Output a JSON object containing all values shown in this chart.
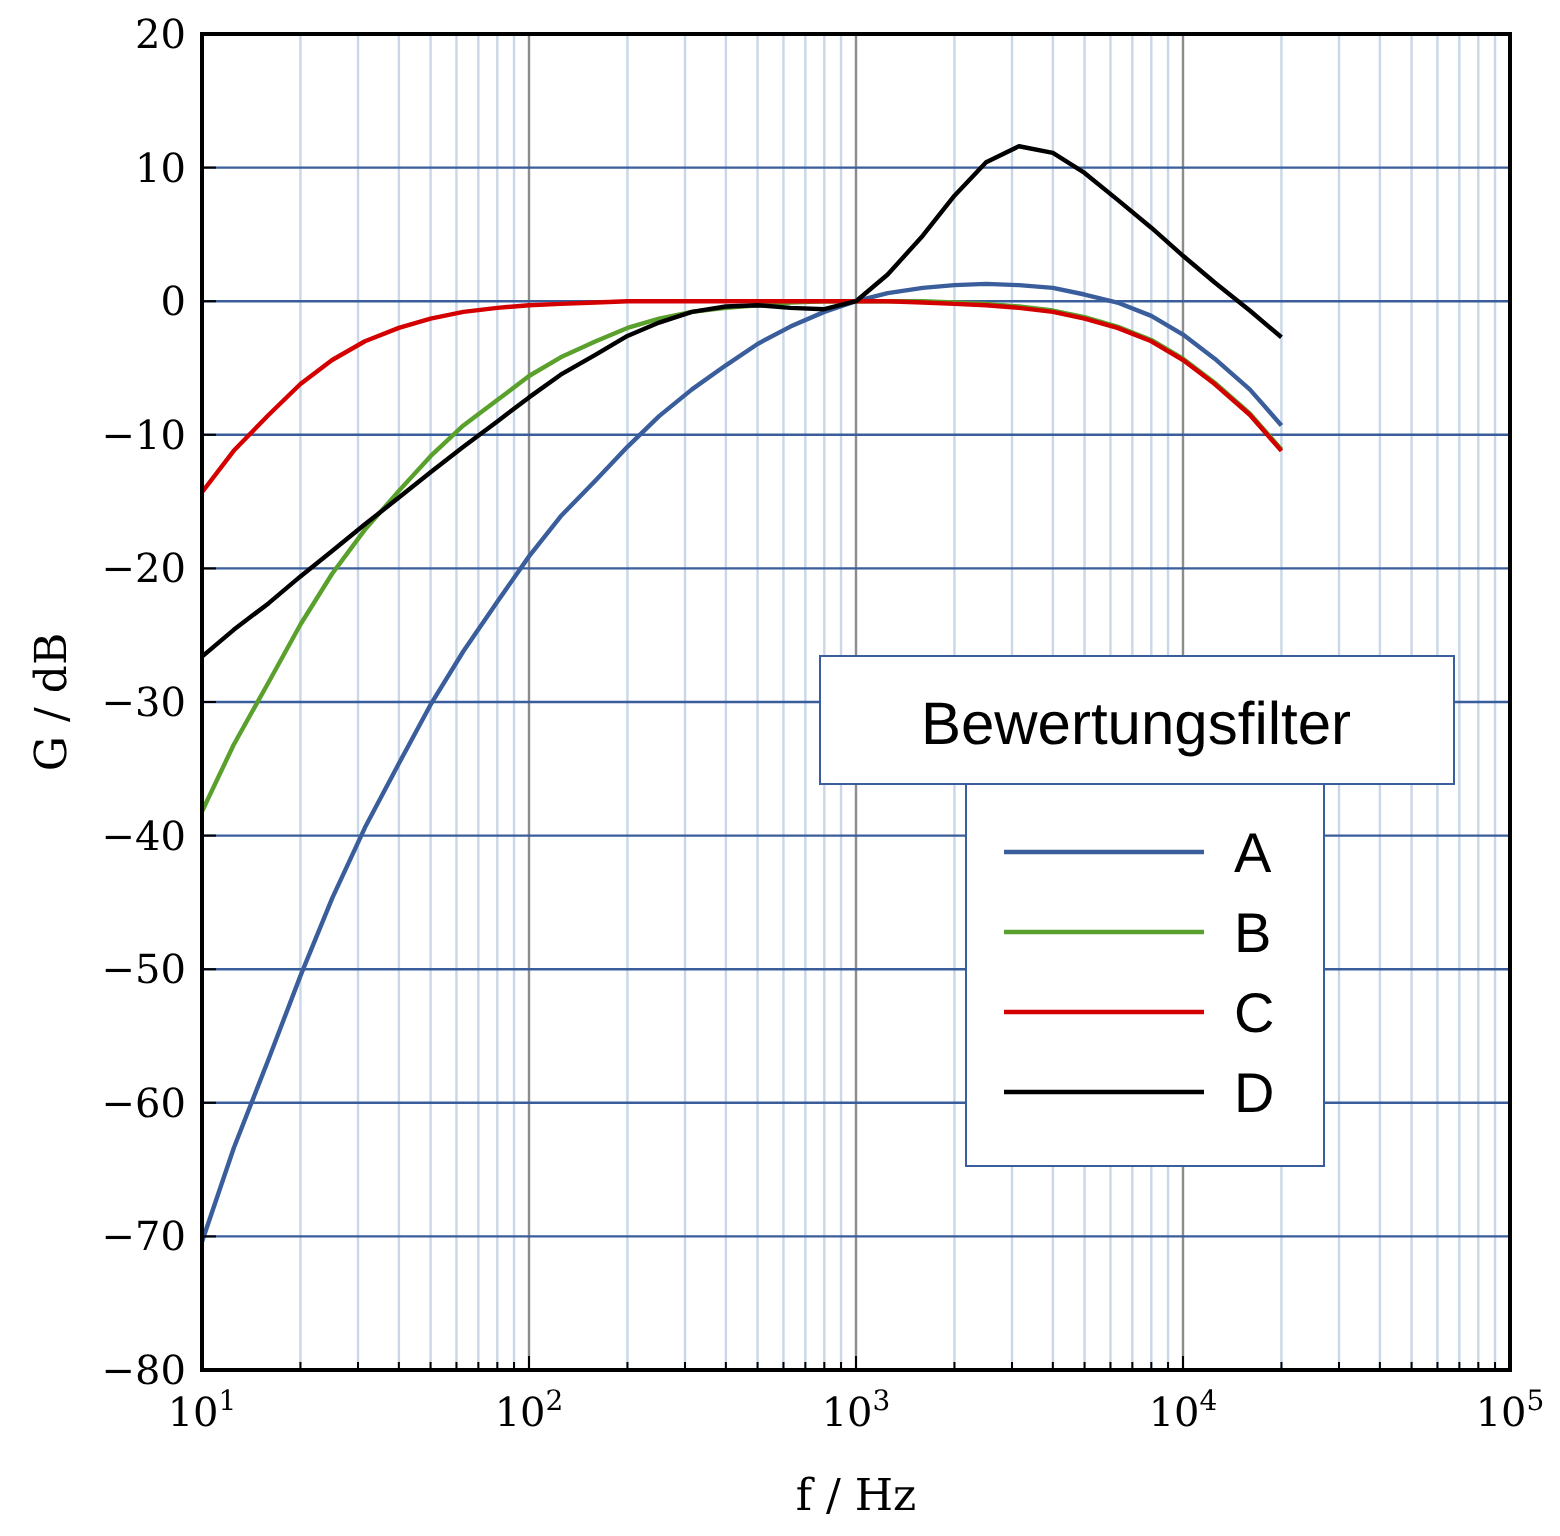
{
  "chart_data": {
    "type": "line",
    "xlabel": "f  / Hz",
    "ylabel": "G  / dB",
    "legend_title": "Bewertungsfilter",
    "log": "x",
    "grid": true,
    "legend": "right",
    "marker": "none",
    "line_style": "solid",
    "xlim": [
      10,
      100000
    ],
    "ylim": [
      -80,
      20
    ],
    "xticks": [
      {
        "value": 10,
        "label": "10$^{1}$"
      },
      {
        "value": 20,
        "label": null
      },
      {
        "value": 30,
        "label": null
      },
      {
        "value": 40,
        "label": null
      },
      {
        "value": 50,
        "label": null
      },
      {
        "value": 60,
        "label": null
      },
      {
        "value": 70,
        "label": null
      },
      {
        "value": 80,
        "label": null
      },
      {
        "value": 90,
        "label": null
      },
      {
        "value": 100,
        "label": "10$^{2}$"
      },
      {
        "value": 200,
        "label": null
      },
      {
        "value": 300,
        "label": null
      },
      {
        "value": 400,
        "label": null
      },
      {
        "value": 500,
        "label": null
      },
      {
        "value": 600,
        "label": null
      },
      {
        "value": 700,
        "label": null
      },
      {
        "value": 800,
        "label": null
      },
      {
        "value": 900,
        "label": null
      },
      {
        "value": 1000,
        "label": "10$^{3}$"
      },
      {
        "value": 2000,
        "label": null
      },
      {
        "value": 3000,
        "label": null
      },
      {
        "value": 4000,
        "label": null
      },
      {
        "value": 5000,
        "label": null
      },
      {
        "value": 6000,
        "label": null
      },
      {
        "value": 7000,
        "label": null
      },
      {
        "value": 8000,
        "label": null
      },
      {
        "value": 9000,
        "label": null
      },
      {
        "value": 10000,
        "label": "10$^{4}$"
      },
      {
        "value": 20000,
        "label": null
      },
      {
        "value": 30000,
        "label": null
      },
      {
        "value": 40000,
        "label": null
      },
      {
        "value": 50000,
        "label": null
      },
      {
        "value": 60000,
        "label": null
      },
      {
        "value": 70000,
        "label": null
      },
      {
        "value": 80000,
        "label": null
      },
      {
        "value": 90000,
        "label": null
      },
      {
        "value": 100000,
        "label": "10$^{5}$"
      }
    ],
    "yticks": [
      {
        "value": -80,
        "label": "−80"
      },
      {
        "value": -70,
        "label": "−70"
      },
      {
        "value": -60,
        "label": "−60"
      },
      {
        "value": -50,
        "label": "−50"
      },
      {
        "value": -40,
        "label": "−40"
      },
      {
        "value": -30,
        "label": "−30"
      },
      {
        "value": -20,
        "label": "−20"
      },
      {
        "value": -10,
        "label": "−10"
      },
      0,
      10,
      20
    ],
    "x": [
      10,
      12.5,
      16,
      20,
      25,
      31.5,
      40,
      50,
      63,
      80,
      100,
      125,
      160,
      200,
      250,
      315,
      400,
      500,
      630,
      800,
      1000,
      1250,
      1600,
      2000,
      2500,
      3150,
      4000,
      5000,
      6300,
      8000,
      10000,
      12500,
      16000,
      20000
    ],
    "series": [
      {
        "name": "A",
        "color": "#3a5e9c",
        "values": [
          -70.4,
          -63.4,
          -56.7,
          -50.5,
          -44.7,
          -39.4,
          -34.6,
          -30.2,
          -26.2,
          -22.5,
          -19.1,
          -16.1,
          -13.4,
          -10.9,
          -8.6,
          -6.6,
          -4.8,
          -3.2,
          -1.9,
          -0.8,
          0,
          0.6,
          1.0,
          1.2,
          1.3,
          1.2,
          1.0,
          0.5,
          -0.1,
          -1.1,
          -2.5,
          -4.3,
          -6.6,
          -9.3
        ]
      },
      {
        "name": "B",
        "color": "#5aa02c",
        "values": [
          -38.2,
          -33.2,
          -28.5,
          -24.2,
          -20.4,
          -17.1,
          -14.2,
          -11.6,
          -9.3,
          -7.4,
          -5.6,
          -4.2,
          -3.0,
          -2.0,
          -1.3,
          -0.8,
          -0.5,
          -0.3,
          -0.1,
          0,
          0,
          0,
          0,
          -0.1,
          -0.2,
          -0.4,
          -0.7,
          -1.2,
          -1.9,
          -2.9,
          -4.3,
          -6.1,
          -8.4,
          -11.1
        ]
      },
      {
        "name": "C",
        "color": "#d40000",
        "values": [
          -14.3,
          -11.2,
          -8.5,
          -6.2,
          -4.4,
          -3.0,
          -2.0,
          -1.3,
          -0.8,
          -0.5,
          -0.3,
          -0.2,
          -0.1,
          0,
          0,
          0,
          0,
          0,
          0,
          0,
          0,
          0,
          -0.1,
          -0.2,
          -0.3,
          -0.5,
          -0.8,
          -1.3,
          -2.0,
          -3.0,
          -4.4,
          -6.2,
          -8.5,
          -11.2
        ]
      },
      {
        "name": "D",
        "color": "#000000",
        "values": [
          -26.6,
          -24.6,
          -22.6,
          -20.6,
          -18.7,
          -16.7,
          -14.7,
          -12.8,
          -10.9,
          -9.0,
          -7.2,
          -5.5,
          -4.0,
          -2.6,
          -1.6,
          -0.8,
          -0.4,
          -0.3,
          -0.5,
          -0.6,
          0,
          2.0,
          4.9,
          7.9,
          10.4,
          11.6,
          11.1,
          9.6,
          7.6,
          5.5,
          3.4,
          1.4,
          -0.7,
          -2.7
        ]
      }
    ]
  }
}
